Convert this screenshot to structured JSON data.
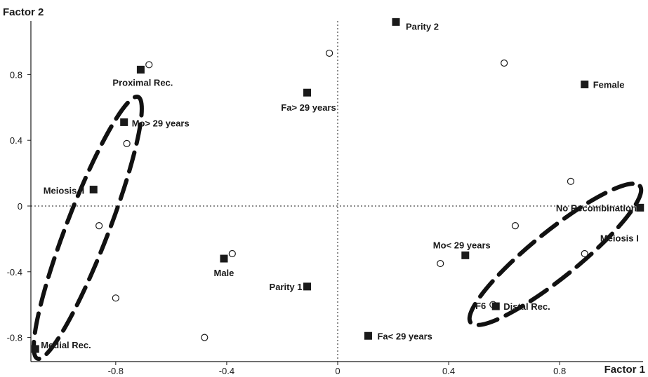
{
  "chart_data": {
    "type": "scatter",
    "title": "",
    "xlabel": "Factor 1",
    "ylabel": "Factor 2",
    "xlim": [
      -1.1,
      1.1
    ],
    "ylim": [
      -1.0,
      1.15
    ],
    "xticks": [
      -0.8,
      -0.4,
      0,
      0.4,
      0.8
    ],
    "yticks": [
      -0.8,
      -0.4,
      0,
      0.4,
      0.8
    ],
    "xtick_labels": [
      "-0.8",
      "-0.4",
      "0",
      "0.4",
      "0.8"
    ],
    "ytick_labels": [
      "-0.8",
      "-0.4",
      "0",
      "0.4",
      "0.8"
    ],
    "reference_lines": {
      "x": 0,
      "y": 0,
      "style": "dotted"
    },
    "grid": false,
    "variables": [
      {
        "label": "Parity 2",
        "x": 0.21,
        "y": 1.12
      },
      {
        "label": "Proximal Rec.",
        "x": -0.71,
        "y": 0.83
      },
      {
        "label": "Fa> 29 years",
        "x": -0.11,
        "y": 0.69
      },
      {
        "label": "Female",
        "x": 0.89,
        "y": 0.74
      },
      {
        "label": "Mo> 29 years",
        "x": -0.77,
        "y": 0.51
      },
      {
        "label": "Meiosis II",
        "x": -0.88,
        "y": 0.1
      },
      {
        "label": "No Recombination",
        "x": 1.09,
        "y": -0.01
      },
      {
        "label": "Meiosis I",
        "x": 1.09,
        "y": -0.01
      },
      {
        "label": "Male",
        "x": -0.41,
        "y": -0.32
      },
      {
        "label": "Mo< 29 years",
        "x": 0.46,
        "y": -0.3
      },
      {
        "label": "Parity 1",
        "x": -0.11,
        "y": -0.49
      },
      {
        "label": "F6",
        "x": 0.57,
        "y": -0.61
      },
      {
        "label": "Distal Rec.",
        "x": 0.57,
        "y": -0.61
      },
      {
        "label": "Fa< 29 years",
        "x": 0.11,
        "y": -0.79
      },
      {
        "label": "Medial Rec.",
        "x": -1.09,
        "y": -0.87
      }
    ],
    "observations": [
      {
        "x": -0.03,
        "y": 0.93
      },
      {
        "x": -0.68,
        "y": 0.86
      },
      {
        "x": 0.6,
        "y": 0.87
      },
      {
        "x": -0.76,
        "y": 0.38
      },
      {
        "x": 0.84,
        "y": 0.15
      },
      {
        "x": -0.86,
        "y": -0.12
      },
      {
        "x": 0.64,
        "y": -0.12
      },
      {
        "x": -0.38,
        "y": -0.29
      },
      {
        "x": 0.37,
        "y": -0.35
      },
      {
        "x": 0.89,
        "y": -0.29
      },
      {
        "x": -0.8,
        "y": -0.56
      },
      {
        "x": -0.48,
        "y": -0.8
      },
      {
        "x": 0.56,
        "y": -0.6
      }
    ],
    "groupings": [
      {
        "members": [
          "Proximal Rec.",
          "Mo> 29 years",
          "Meiosis II",
          "Medial Rec."
        ],
        "style": "dashed-ellipse"
      },
      {
        "members": [
          "No Recombination",
          "Meiosis I",
          "F6",
          "Distal Rec."
        ],
        "style": "dashed-ellipse"
      }
    ]
  }
}
